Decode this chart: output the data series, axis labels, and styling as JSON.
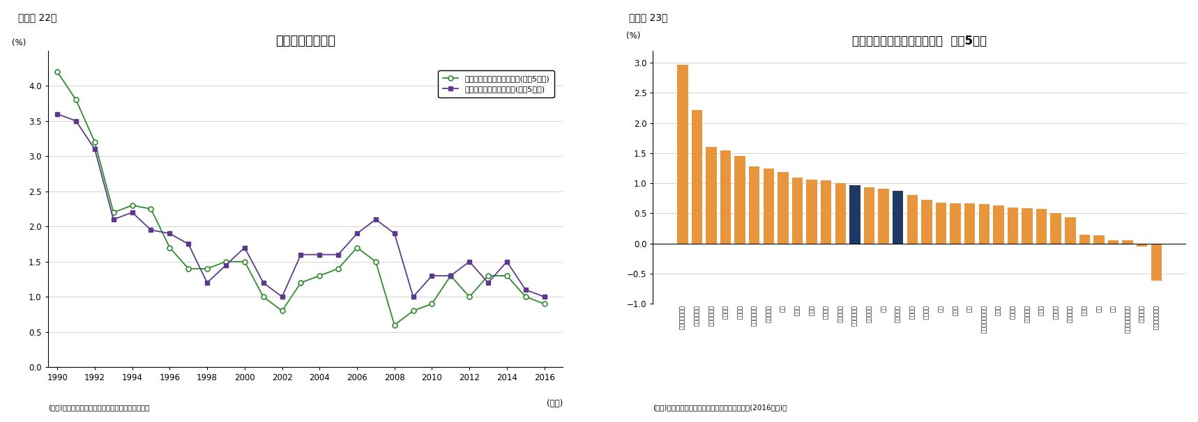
{
  "fig22_title": "企業の期待成長率",
  "fig22_ylabel": "(%)",
  "fig22_xlabel": "(年度)",
  "fig22_source": "(資料)内閣府「企業行動に関するアンケート調査」",
  "fig22_series1_label": "わが国の期待実質成長率(今後5年間)",
  "fig22_series2_label": "業界需要の期待実質成長率(今後5年間)",
  "fig22_years": [
    1990,
    1991,
    1992,
    1993,
    1994,
    1995,
    1996,
    1997,
    1998,
    1999,
    2000,
    2001,
    2002,
    2003,
    2004,
    2005,
    2006,
    2007,
    2008,
    2009,
    2010,
    2011,
    2012,
    2013,
    2014,
    2015,
    2016
  ],
  "fig22_series1": [
    3.6,
    3.5,
    3.1,
    2.1,
    2.2,
    1.95,
    1.9,
    1.75,
    1.2,
    1.45,
    1.7,
    1.2,
    1.0,
    1.6,
    1.6,
    1.6,
    1.9,
    2.1,
    1.9,
    1.0,
    1.3,
    1.3,
    1.5,
    1.2,
    1.5,
    1.1,
    1.0
  ],
  "fig22_series2": [
    4.2,
    3.8,
    3.2,
    2.2,
    2.3,
    2.25,
    1.7,
    1.4,
    1.4,
    1.5,
    1.5,
    1.0,
    0.8,
    1.2,
    1.3,
    1.4,
    1.7,
    1.5,
    0.6,
    0.8,
    0.9,
    1.3,
    1.0,
    1.3,
    1.3,
    1.0,
    0.9
  ],
  "fig22_color1": "#5b3a8c",
  "fig22_color2": "#2e8b2e",
  "fig22_ylim": [
    0.0,
    4.5
  ],
  "fig22_yticks": [
    0.0,
    0.5,
    1.0,
    1.5,
    2.0,
    2.5,
    3.0,
    3.5,
    4.0
  ],
  "fig23_title": "業界需要の実質成長率見通し  今後5年間",
  "fig23_ylabel": "(%)",
  "fig23_source": "(資料)内閣府「企業行動に関するアンケート調査(2016年度)」",
  "fig23_categories": [
    "証券、商品先物",
    "その他金融業",
    "情報通信機器",
    "精密機器",
    "電気機器",
    "情報・通信業",
    "サービス業",
    "機械",
    "海運業",
    "医薬品",
    "ゴム製品",
    "輸送用機器",
    "日本経済全体",
    "電気・ガス",
    "化学",
    "全業界平均",
    "不動産業",
    "非鉄金属",
    "銀行",
    "卸売業",
    "陸運",
    "倉庫・運輸関連業",
    "食料品",
    "繊維製品",
    "水産・農業",
    "保険業",
    "金属製品",
    "その他製品",
    "小売業",
    "建設",
    "鉄鋼",
    "ガラス・土石製品",
    "パルプ・紙",
    "石油・石炭製品"
  ],
  "fig23_values": [
    2.97,
    2.21,
    1.6,
    1.55,
    1.45,
    1.28,
    1.25,
    1.19,
    1.1,
    1.06,
    1.05,
    1.0,
    0.97,
    0.93,
    0.91,
    0.88,
    0.81,
    0.73,
    0.68,
    0.67,
    0.67,
    0.65,
    0.63,
    0.6,
    0.59,
    0.57,
    0.51,
    0.44,
    0.15,
    0.14,
    0.05,
    0.05,
    -0.05,
    -0.62
  ],
  "fig23_navy_indices": [
    12,
    15
  ],
  "fig23_color_orange": "#E8963C",
  "fig23_color_navy": "#1f3864",
  "fig23_ylim": [
    -1.0,
    3.2
  ],
  "fig23_yticks": [
    -1.0,
    -0.5,
    0.0,
    0.5,
    1.0,
    1.5,
    2.0,
    2.5,
    3.0
  ]
}
